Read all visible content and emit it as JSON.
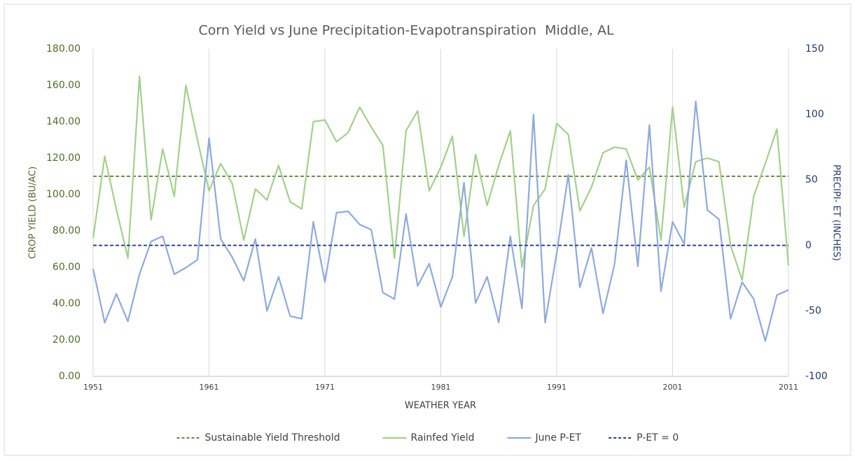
{
  "chart_data": {
    "type": "line",
    "title": "Corn Yield vs June Precipitation-Evapotranspiration  Middle, AL",
    "x_label": "WEATHER YEAR",
    "y_label": "CROP YIELD (BU/AC)",
    "y2_label": "PRECIPI- ET (INCHES)",
    "x": [
      1951,
      1952,
      1953,
      1954,
      1955,
      1956,
      1957,
      1958,
      1959,
      1960,
      1961,
      1962,
      1963,
      1964,
      1965,
      1966,
      1967,
      1968,
      1969,
      1970,
      1971,
      1972,
      1973,
      1974,
      1975,
      1976,
      1977,
      1978,
      1979,
      1980,
      1981,
      1982,
      1983,
      1984,
      1985,
      1986,
      1987,
      1988,
      1989,
      1990,
      1991,
      1992,
      1993,
      1994,
      1995,
      1996,
      1997,
      1998,
      1999,
      2000,
      2001,
      2002,
      2003,
      2004,
      2005,
      2006,
      2007,
      2008,
      2009,
      2010,
      2011
    ],
    "xlim": [
      1951,
      2011
    ],
    "xticks": [
      1951,
      1961,
      1971,
      1981,
      1991,
      2001,
      2011
    ],
    "ylim": [
      0,
      180
    ],
    "yticks": [
      {
        "value": 0,
        "label": "0.00"
      },
      {
        "value": 20,
        "label": "20.00"
      },
      {
        "value": 40,
        "label": "40.00"
      },
      {
        "value": 60,
        "label": "60.00"
      },
      {
        "value": 80,
        "label": "80.00"
      },
      {
        "value": 100,
        "label": "100.00"
      },
      {
        "value": 120,
        "label": "120.00"
      },
      {
        "value": 140,
        "label": "140.00"
      },
      {
        "value": 160,
        "label": "160.00"
      },
      {
        "value": 180,
        "label": "180.00"
      }
    ],
    "y2lim": [
      -100,
      150
    ],
    "y2ticks": [
      150,
      100,
      50,
      0,
      -50,
      -100
    ],
    "grid": "x",
    "legend": "bottom",
    "series": [
      {
        "name": "Sustainable Yield Threshold",
        "color": "#6b8e4e",
        "dashed": true,
        "value": 110
      },
      {
        "name": "Rainfed Yield",
        "color": "#a3d08a",
        "values": [
          76,
          121,
          92,
          65,
          165,
          86,
          125,
          99,
          160,
          130,
          102,
          117,
          106,
          75,
          103,
          97,
          116,
          96,
          92,
          140,
          141,
          129,
          134,
          148,
          137,
          127,
          65,
          135,
          146,
          102,
          115,
          132,
          77,
          122,
          94,
          116,
          135,
          60,
          94,
          103,
          139,
          133,
          91,
          104,
          123,
          126,
          125,
          108,
          115,
          75,
          148,
          93,
          118,
          120,
          118,
          72,
          53,
          99,
          117,
          136,
          61
        ]
      },
      {
        "name": "June P-ET",
        "color": "#8eaadb",
        "axis": "y2",
        "values": [
          -18,
          -59,
          -37,
          -58,
          -22,
          3,
          7,
          -22,
          -17,
          -11,
          82,
          5,
          -9,
          -27,
          5,
          -50,
          -24,
          -54,
          -56,
          18,
          -28,
          25,
          26,
          16,
          12,
          -36,
          -41,
          24,
          -31,
          -14,
          -47,
          -24,
          48,
          -44,
          -24,
          -59,
          7,
          -48,
          100,
          -59,
          -6,
          54,
          -32,
          -2,
          -52,
          -14,
          65,
          -16,
          92,
          -35,
          18,
          1,
          110,
          27,
          20,
          -56,
          -28,
          -41,
          -73,
          -38,
          -34
        ]
      },
      {
        "name": "P-ET = 0",
        "color": "#2f4b8f",
        "dashed": true,
        "axis": "y2",
        "value": 0
      }
    ]
  }
}
